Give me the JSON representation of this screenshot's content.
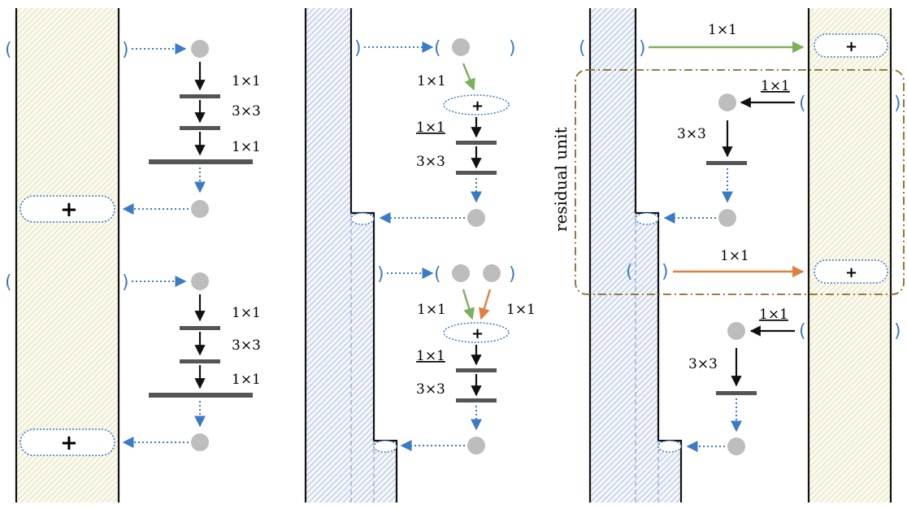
{
  "labels": {
    "conv_1x1": "1×1",
    "conv_3x3": "3×3",
    "plus": "+",
    "residual_unit": "residual unit",
    "bracket_open": "(",
    "bracket_close": ")"
  },
  "colors": {
    "blue_arrow": "#3a7ac6",
    "green_arrow": "#7cb05a",
    "orange_arrow": "#e08040",
    "black_arrow": "#111111",
    "node": "#bdbdbd",
    "layer_bar": "#555555",
    "yellow_hatch": "#d8d2a0",
    "blue_hatch": "#8fa6cc",
    "residual_box": "#8a6a2a"
  },
  "panels": [
    {
      "name": "panel-a",
      "stem_color": "yellow-hatch"
    },
    {
      "name": "panel-b",
      "stem_color": "blue-hatch"
    },
    {
      "name": "panel-c",
      "stem_color": "blue-and-yellow-hatch"
    }
  ]
}
